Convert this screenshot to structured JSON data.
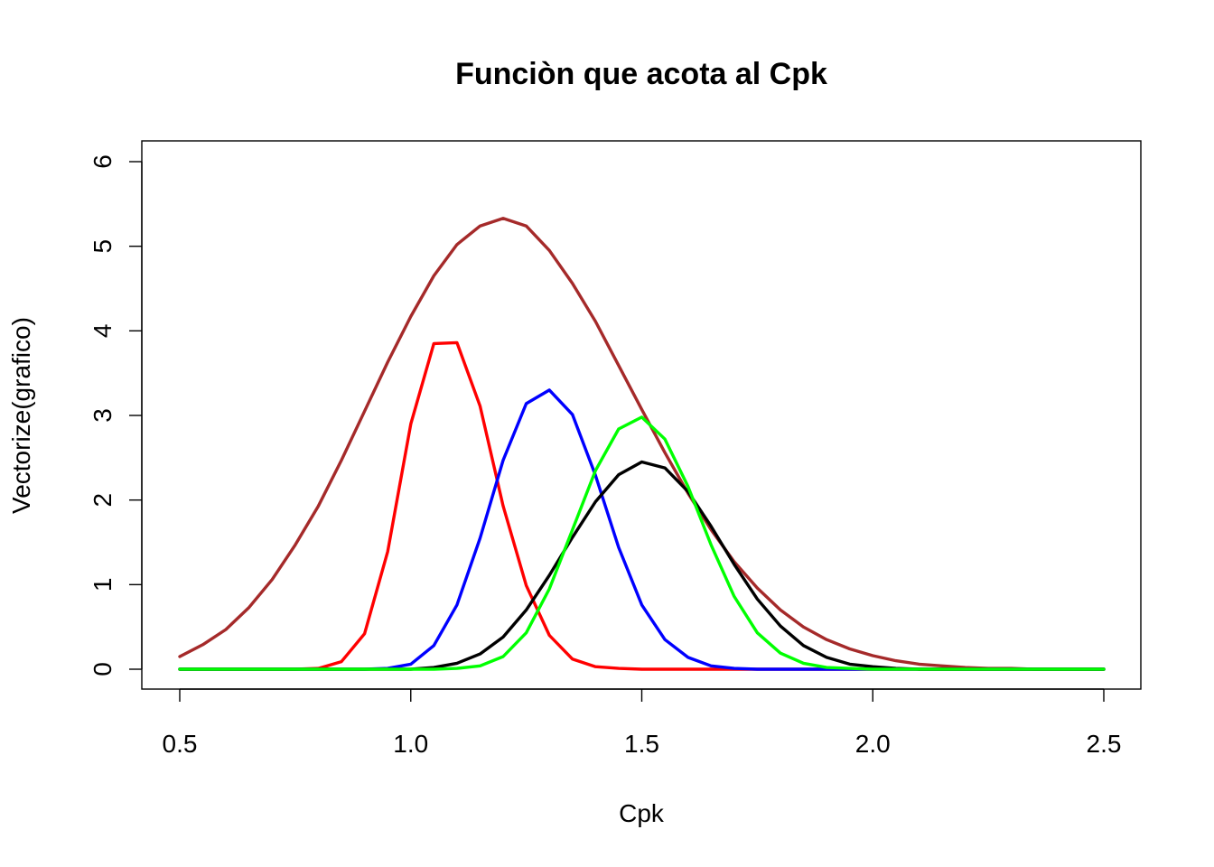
{
  "chart_data": {
    "type": "line",
    "title": "Funciòn que acota al Cpk",
    "xlabel": "Cpk",
    "ylabel": "Vectorize(grafico)",
    "xlim": [
      0.5,
      2.5
    ],
    "ylim": [
      0,
      6
    ],
    "x_ticks": [
      "0.5",
      "1.0",
      "1.5",
      "2.0",
      "2.5"
    ],
    "y_ticks": [
      "0",
      "1",
      "2",
      "3",
      "4",
      "5",
      "6"
    ],
    "grid": false,
    "legend": "none",
    "x": [
      0.5,
      0.55,
      0.6,
      0.65,
      0.7,
      0.75,
      0.8,
      0.85,
      0.9,
      0.95,
      1.0,
      1.05,
      1.1,
      1.15,
      1.2,
      1.25,
      1.3,
      1.35,
      1.4,
      1.45,
      1.5,
      1.55,
      1.6,
      1.65,
      1.7,
      1.75,
      1.8,
      1.85,
      1.9,
      1.95,
      2.0,
      2.05,
      2.1,
      2.15,
      2.2,
      2.25,
      2.3,
      2.35,
      2.4,
      2.45,
      2.5
    ],
    "series": [
      {
        "color": "#a52a2a",
        "values": [
          0.15,
          0.29,
          0.47,
          0.73,
          1.06,
          1.47,
          1.93,
          2.47,
          3.05,
          3.63,
          4.17,
          4.65,
          5.02,
          5.24,
          5.33,
          5.24,
          4.95,
          4.56,
          4.11,
          3.59,
          3.07,
          2.56,
          2.08,
          1.65,
          1.27,
          0.96,
          0.7,
          0.5,
          0.35,
          0.24,
          0.16,
          0.1,
          0.06,
          0.04,
          0.02,
          0.01,
          0.01,
          0.0,
          0.0,
          0.0,
          0.0
        ]
      },
      {
        "color": "#ff0000",
        "values": [
          0.0,
          0.0,
          0.0,
          0.0,
          0.0,
          0.0,
          0.01,
          0.09,
          0.42,
          1.39,
          2.9,
          3.85,
          3.86,
          3.11,
          1.93,
          0.99,
          0.4,
          0.12,
          0.03,
          0.01,
          0.0,
          0.0,
          0.0,
          0.0,
          0.0,
          0.0,
          0.0,
          0.0,
          0.0,
          0.0,
          0.0,
          0.0,
          0.0,
          0.0,
          0.0,
          0.0,
          0.0,
          0.0,
          0.0,
          0.0,
          0.0
        ]
      },
      {
        "color": "#0000ff",
        "values": [
          0.0,
          0.0,
          0.0,
          0.0,
          0.0,
          0.0,
          0.0,
          0.0,
          0.0,
          0.01,
          0.06,
          0.28,
          0.76,
          1.55,
          2.47,
          3.14,
          3.3,
          3.01,
          2.29,
          1.44,
          0.76,
          0.35,
          0.14,
          0.04,
          0.01,
          0.0,
          0.0,
          0.0,
          0.0,
          0.0,
          0.0,
          0.0,
          0.0,
          0.0,
          0.0,
          0.0,
          0.0,
          0.0,
          0.0,
          0.0,
          0.0
        ]
      },
      {
        "color": "#000000",
        "values": [
          0.0,
          0.0,
          0.0,
          0.0,
          0.0,
          0.0,
          0.0,
          0.0,
          0.0,
          0.0,
          0.0,
          0.02,
          0.07,
          0.18,
          0.38,
          0.7,
          1.11,
          1.56,
          1.98,
          2.3,
          2.45,
          2.38,
          2.1,
          1.69,
          1.24,
          0.83,
          0.51,
          0.28,
          0.14,
          0.06,
          0.03,
          0.01,
          0.0,
          0.0,
          0.0,
          0.0,
          0.0,
          0.0,
          0.0,
          0.0,
          0.0
        ]
      },
      {
        "color": "#00ff00",
        "values": [
          0.0,
          0.0,
          0.0,
          0.0,
          0.0,
          0.0,
          0.0,
          0.0,
          0.0,
          0.0,
          0.0,
          0.0,
          0.01,
          0.04,
          0.15,
          0.43,
          0.95,
          1.65,
          2.35,
          2.84,
          2.98,
          2.72,
          2.16,
          1.47,
          0.86,
          0.43,
          0.19,
          0.07,
          0.02,
          0.01,
          0.0,
          0.0,
          0.0,
          0.0,
          0.0,
          0.0,
          0.0,
          0.0,
          0.0,
          0.0,
          0.0
        ]
      }
    ]
  }
}
